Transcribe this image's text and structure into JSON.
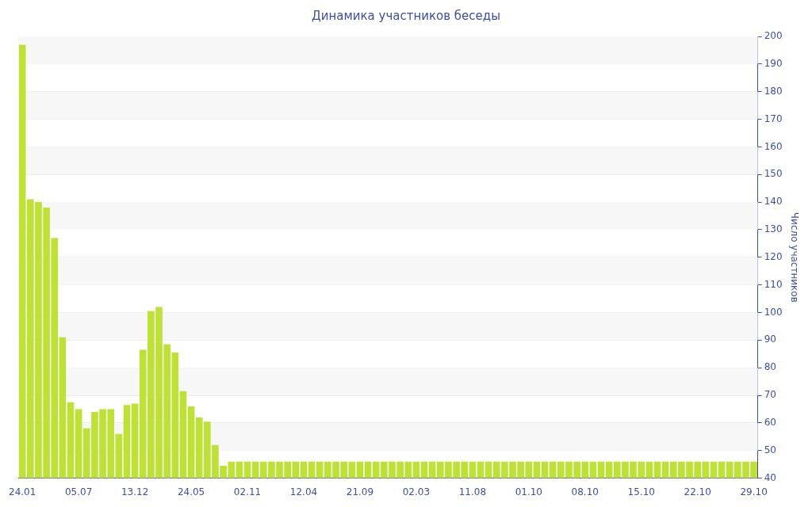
{
  "chart_data": {
    "type": "bar",
    "title": "Динамика участников беседы",
    "y2label": "Число участников",
    "categories": [
      "24.01",
      null,
      null,
      null,
      null,
      null,
      null,
      "05.07",
      null,
      null,
      null,
      null,
      null,
      null,
      "13.12",
      null,
      null,
      null,
      null,
      null,
      null,
      "24.05",
      null,
      null,
      null,
      null,
      null,
      null,
      "02.11",
      null,
      null,
      null,
      null,
      null,
      null,
      "12.04",
      null,
      null,
      null,
      null,
      null,
      null,
      "21.09",
      null,
      null,
      null,
      null,
      null,
      null,
      "02.03",
      null,
      null,
      null,
      null,
      null,
      null,
      "11.08",
      null,
      null,
      null,
      null,
      null,
      null,
      "01.10",
      null,
      null,
      null,
      null,
      null,
      null,
      "08.10",
      null,
      null,
      null,
      null,
      null,
      null,
      "15.10",
      null,
      null,
      null,
      null,
      null,
      null,
      "22.10",
      null,
      null,
      null,
      null,
      null,
      null,
      "29.10"
    ],
    "series": [
      {
        "color": "#bde234",
        "axis": "y2",
        "values": [
          197,
          141,
          140,
          138,
          127,
          91,
          67.5,
          65,
          58,
          64,
          65,
          65,
          56,
          66.5,
          67,
          86.5,
          100.5,
          102,
          88.5,
          85.5,
          71.5,
          66,
          62,
          60.5,
          52,
          44.5,
          46,
          46,
          46,
          46,
          46,
          46,
          46,
          46,
          46,
          46,
          46,
          46,
          46,
          46,
          46,
          46,
          46,
          46,
          46,
          46,
          46,
          46,
          46,
          46,
          46,
          46,
          46,
          46,
          46,
          46,
          46,
          46,
          46,
          46,
          46,
          46,
          46,
          46,
          46,
          46,
          46,
          46,
          46,
          46,
          46,
          46,
          46,
          46,
          46,
          46,
          46,
          46,
          46,
          46,
          46,
          46,
          46,
          46,
          46,
          46,
          46,
          46,
          46,
          46,
          46,
          46
        ]
      }
    ],
    "y2lim": [
      40,
      200
    ],
    "y2ticks": [
      40,
      50,
      60,
      70,
      80,
      90,
      100,
      110,
      120,
      130,
      140,
      150,
      160,
      170,
      180,
      190,
      200
    ],
    "grid": "y",
    "legend": false
  }
}
